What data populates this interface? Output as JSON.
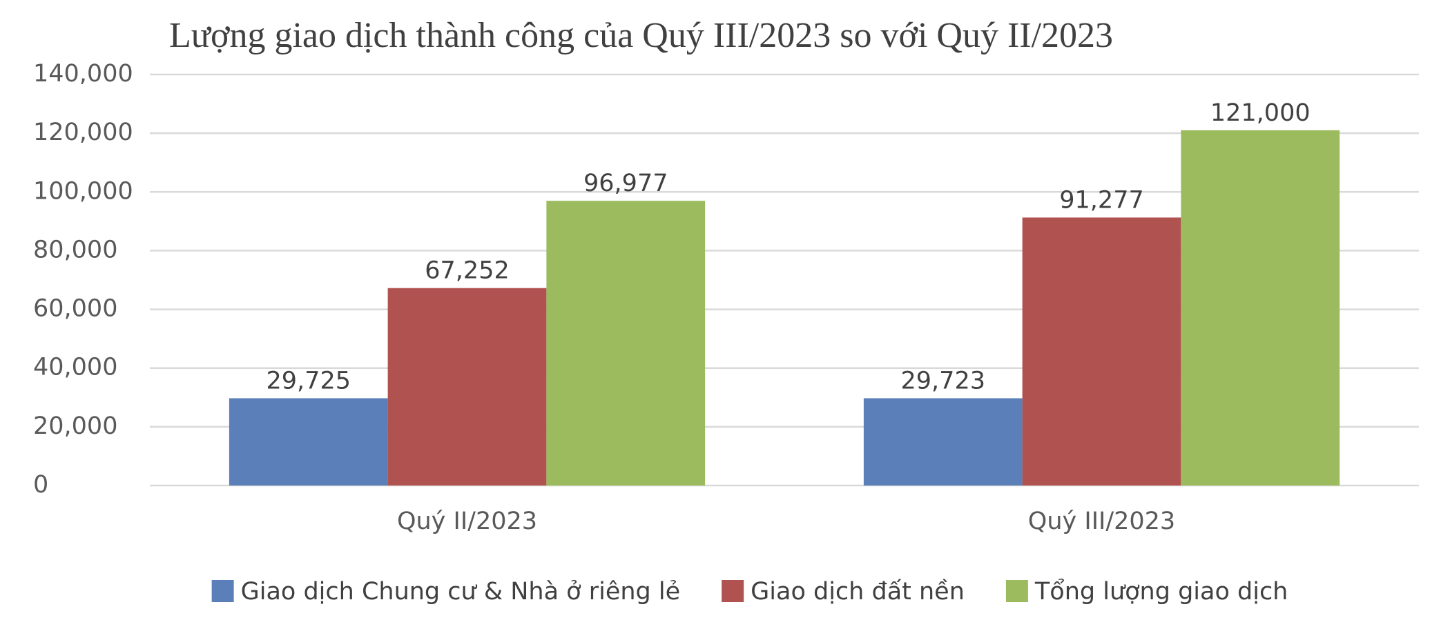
{
  "chart_data": {
    "type": "bar",
    "title": "Lượng giao dịch thành công của Quý III/2023 so với Quý II/2023",
    "categories": [
      "Quý II/2023",
      "Quý III/2023"
    ],
    "series": [
      {
        "name": "Giao dịch Chung cư & Nhà ở riêng lẻ",
        "color": "#5a7fb9",
        "values": [
          29725,
          29723
        ],
        "value_labels": [
          "29,725",
          "29,723"
        ]
      },
      {
        "name": "Giao dịch đất nền",
        "color": "#b0524f",
        "values": [
          67252,
          91277
        ],
        "value_labels": [
          "67,252",
          "91,277"
        ]
      },
      {
        "name": "Tổng lượng giao dịch",
        "color": "#9bbb5e",
        "values": [
          96977,
          121000
        ],
        "value_labels": [
          "96,977",
          "121,000"
        ]
      }
    ],
    "ylim": [
      0,
      140000
    ],
    "yticks": [
      0,
      {
        "value": 20000,
        "label": "20,000"
      },
      {
        "value": 40000,
        "label": "40,000"
      },
      {
        "value": 60000,
        "label": "60,000"
      },
      {
        "value": 80000,
        "label": "80,000"
      },
      {
        "value": 100000,
        "label": "100,000"
      },
      {
        "value": 120000,
        "label": "120,000"
      },
      {
        "value": 140000,
        "label": "140,000"
      }
    ],
    "grid": true,
    "legend": "bottom"
  }
}
